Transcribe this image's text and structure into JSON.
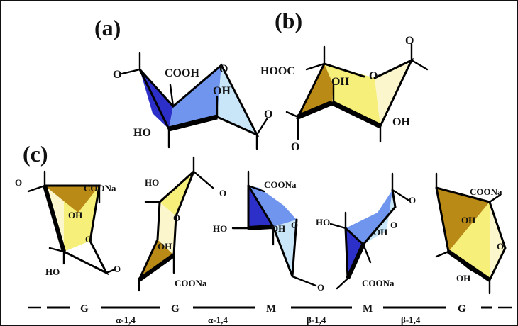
{
  "panel_labels": {
    "a": "(a)",
    "b": "(b)",
    "c": "(c)"
  },
  "colors": {
    "mannuronic_dark": "#2d2fc9",
    "mannuronic_mid": "#6f95ef",
    "mannuronic_light": "#c9e6f8",
    "guluronic_dark": "#b98a16",
    "guluronic_mid": "#f6f07a",
    "guluronic_light": "#fbf6cc"
  },
  "structure_a": {
    "cooh": "COOH",
    "oh": "OH",
    "ho": "HO",
    "o_ring": "O",
    "o_left": "O",
    "o_right": "O"
  },
  "structure_b": {
    "hooc": "HOOC",
    "oh_top": "OH",
    "oh_bottom": "OH",
    "o_ring": "O",
    "o_top": "O",
    "o_bottom": "O"
  },
  "chain": {
    "g1": {
      "coona": "COONa",
      "oh": "OH",
      "ho": "HO",
      "o_ring": "O"
    },
    "o_link1": "O",
    "g2": {
      "ho": "HO",
      "oh": "OH",
      "coona": "COONa",
      "o_ring": "O"
    },
    "o_link2": "O",
    "m1": {
      "coona": "COONa",
      "ho": "HO",
      "oh": "OH",
      "o_ring": "O"
    },
    "o_link3": "O",
    "m2": {
      "ho": "HO",
      "oh": "OH",
      "coona": "COONa",
      "o_ring": "O"
    },
    "o_link4": "O",
    "g3": {
      "coona": "COONa",
      "oh_top": "OH",
      "oh_bottom": "OH",
      "o_ring": "O"
    }
  },
  "sequence": {
    "residues": [
      "G",
      "G",
      "M",
      "M",
      "G"
    ],
    "linkages": [
      "α-1,4",
      "α-1,4",
      "β-1,4",
      "β-1,4"
    ]
  }
}
